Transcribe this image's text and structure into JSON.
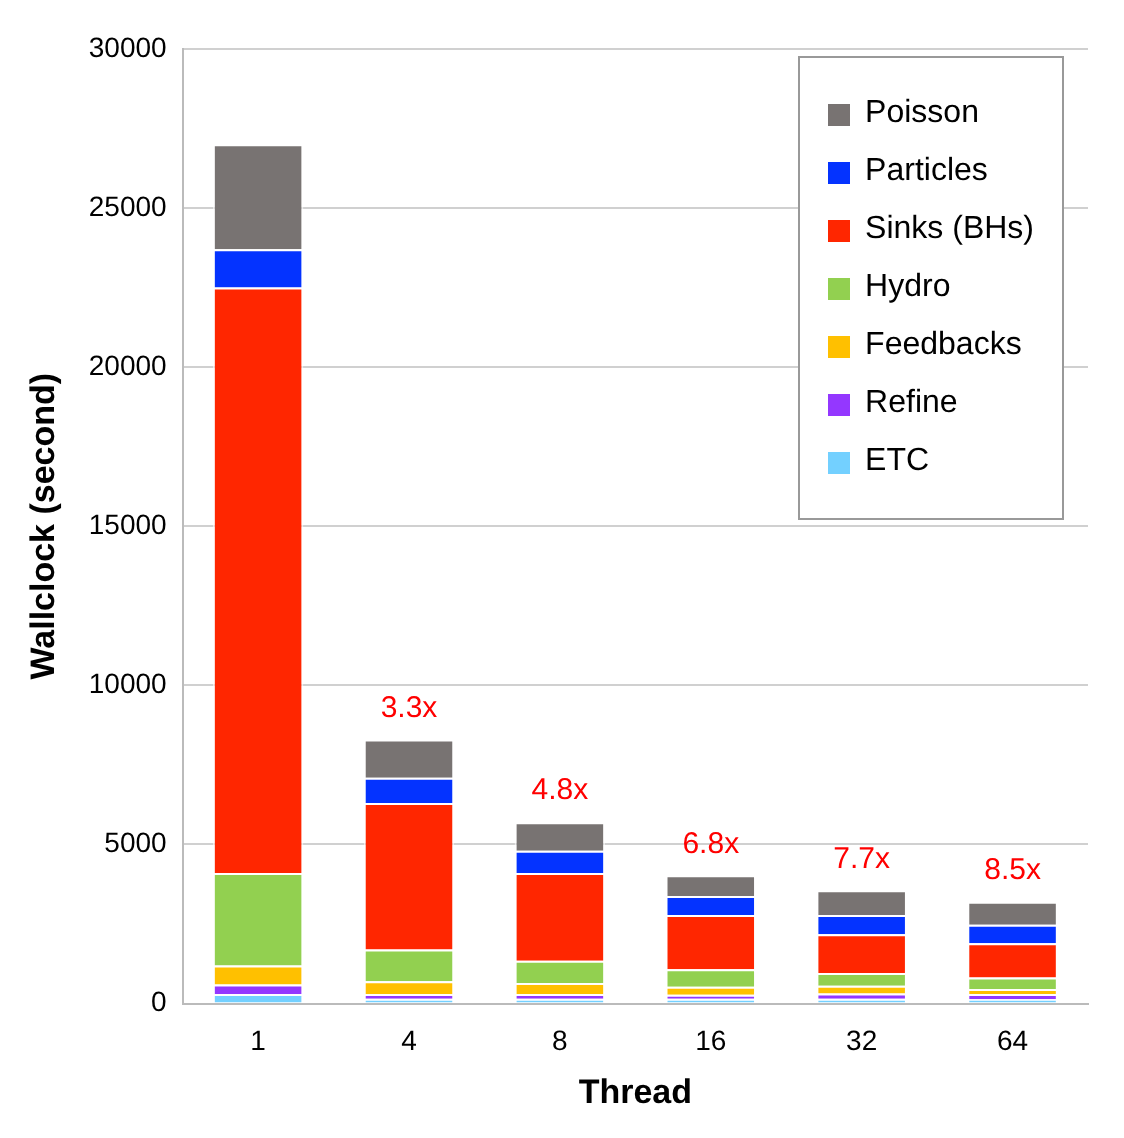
{
  "chart_data": {
    "type": "bar",
    "stacked": true,
    "xlabel": "Thread",
    "ylabel": "Wallclock (second)",
    "categories": [
      "1",
      "4",
      "8",
      "16",
      "32",
      "64"
    ],
    "series": [
      {
        "name": "ETC",
        "color": "#73d0ff",
        "values": [
          300,
          150,
          150,
          150,
          150,
          140
        ]
      },
      {
        "name": "Refine",
        "color": "#9437ff",
        "values": [
          300,
          150,
          150,
          130,
          170,
          160
        ]
      },
      {
        "name": "Feedbacks",
        "color": "#ffc000",
        "values": [
          600,
          400,
          350,
          250,
          240,
          160
        ]
      },
      {
        "name": "Hydro",
        "color": "#92d050",
        "values": [
          2900,
          1000,
          700,
          550,
          400,
          360
        ]
      },
      {
        "name": "Sinks (BHs)",
        "color": "#ff2600",
        "values": [
          18400,
          4600,
          2750,
          1700,
          1220,
          1080
        ]
      },
      {
        "name": "Particles",
        "color": "#0433ff",
        "values": [
          1200,
          800,
          700,
          600,
          600,
          580
        ]
      },
      {
        "name": "Poisson",
        "color": "#787372",
        "values": [
          3300,
          1200,
          900,
          650,
          780,
          720
        ]
      }
    ],
    "ylim": [
      0,
      30000
    ],
    "yticks": [
      0,
      5000,
      10000,
      15000,
      20000,
      25000,
      30000
    ],
    "grid": "y",
    "legend": "top right",
    "annotations": [
      {
        "text": "3.3x",
        "x": "4",
        "y": 8300
      },
      {
        "text": "4.8x",
        "x": "8",
        "y": 5700
      },
      {
        "text": "6.8x",
        "x": "16",
        "y": 4030
      },
      {
        "text": "7.7x",
        "x": "32",
        "y": 3560
      },
      {
        "text": "8.5x",
        "x": "64",
        "y": 3200
      }
    ]
  }
}
